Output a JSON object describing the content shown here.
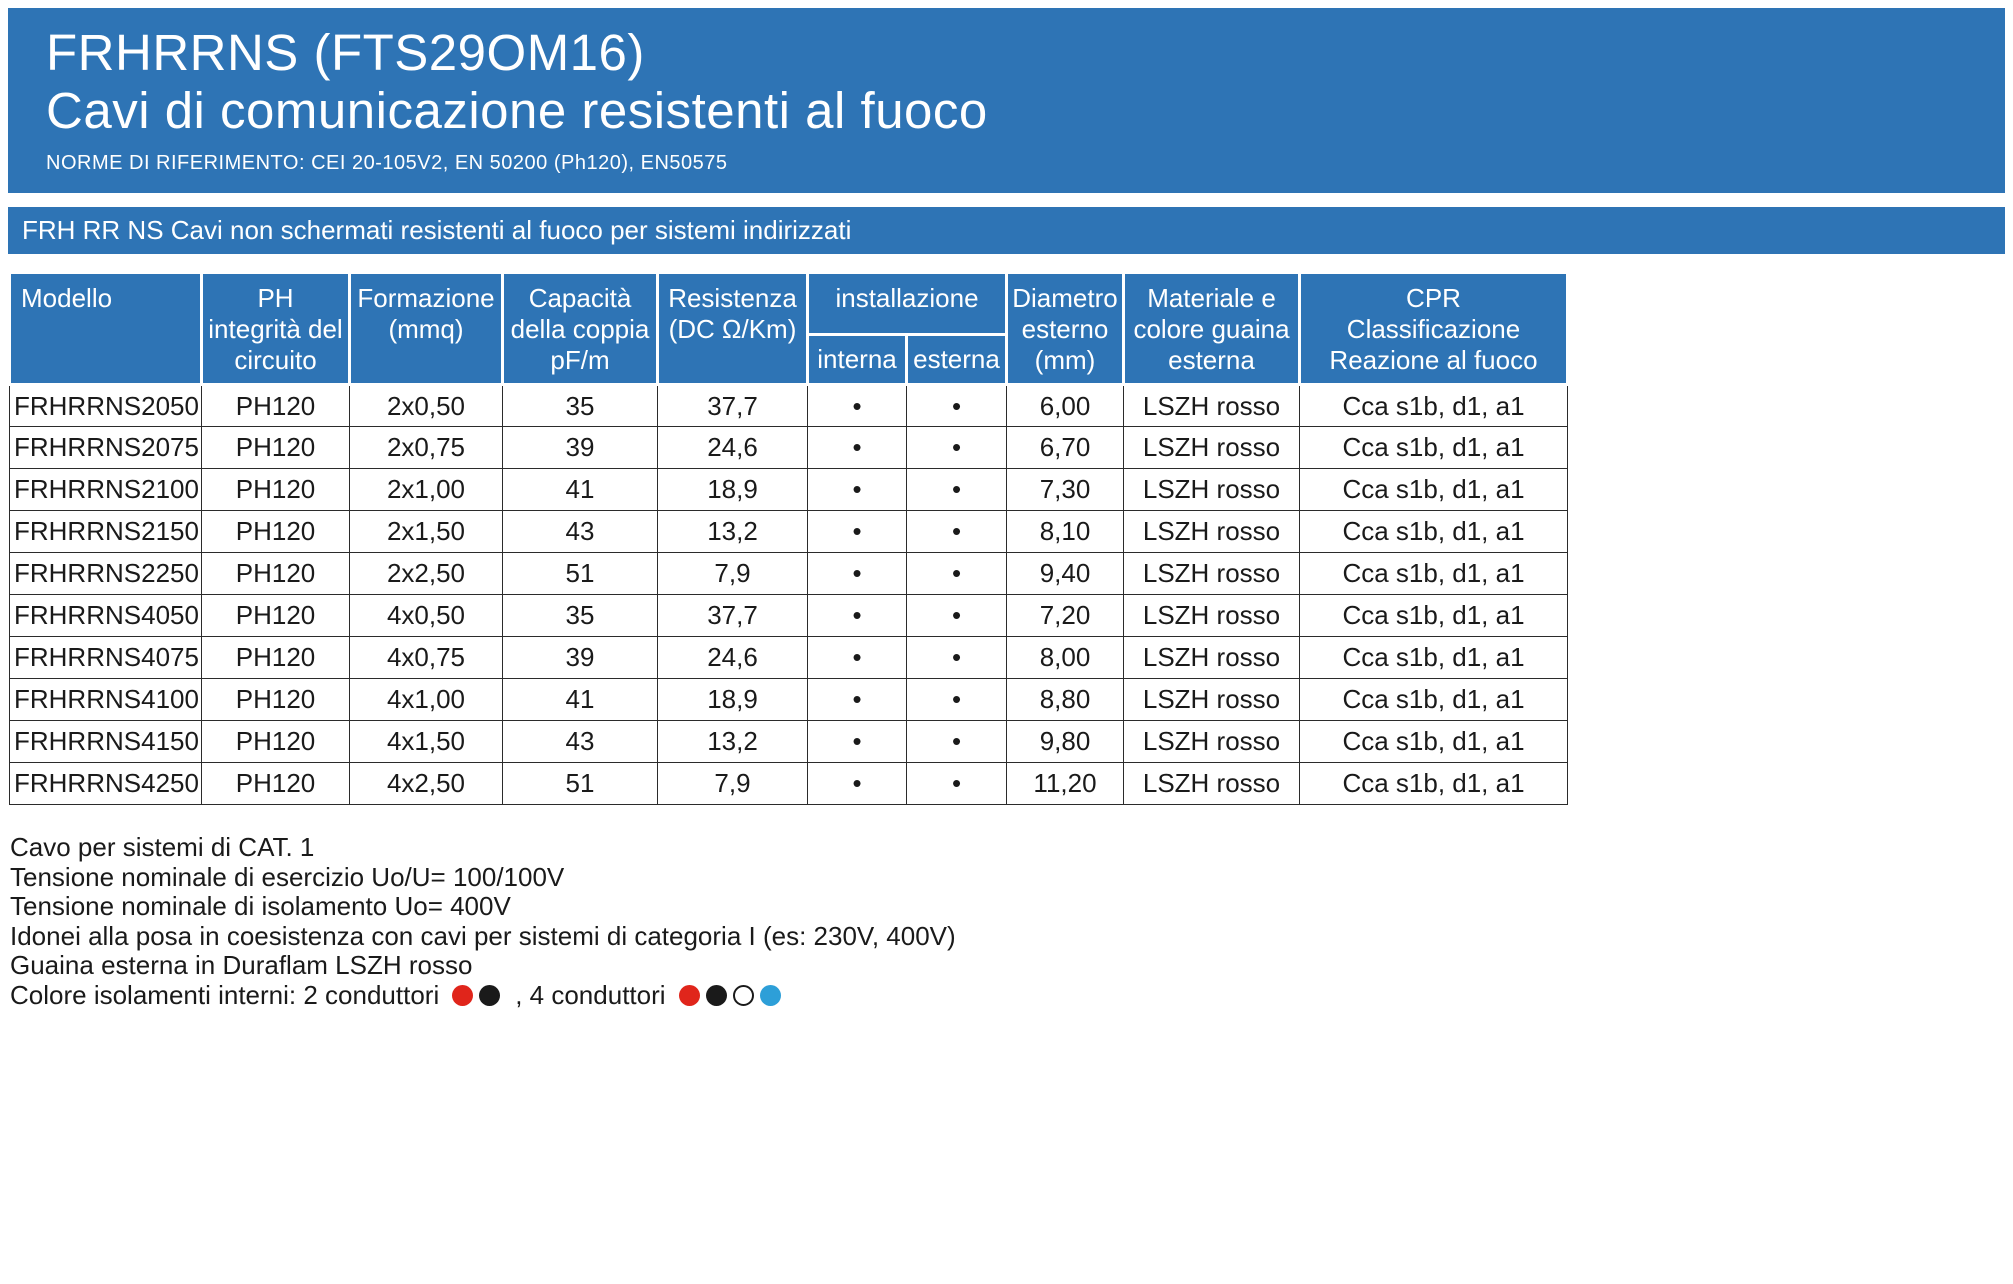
{
  "colors": {
    "primary_blue": "#2e74b5",
    "header_text": "#ffffff",
    "body_text": "#1a1a1a",
    "table_border": "#2b2b2b"
  },
  "header": {
    "title_line1": "FRHRRNS (FTS29OM16)",
    "title_line2": "Cavi di comunicazione resistenti al fuoco",
    "norms": "NORME DI RIFERIMENTO: CEI 20-105V2, EN 50200 (Ph120), EN50575"
  },
  "series_bar": {
    "text": "FRH RR NS Cavi non schermati resistenti al fuoco per sistemi indirizzati"
  },
  "table": {
    "headers": {
      "modello": "Modello",
      "ph": "PH\nintegrità del\ncircuito",
      "formazione": "Formazione\n(mmq)",
      "capacita": "Capacità\ndella coppia\npF/m",
      "resistenza": "Resistenza\n(DC Ω/Km)",
      "installazione": "installazione",
      "interna": "interna",
      "esterna": "esterna",
      "diametro": "Diametro\nesterno\n(mm)",
      "materiale": "Materiale e\ncolore guaina\nesterna",
      "cpr": "CPR\nClassificazione\nReazione al fuoco"
    },
    "rows": [
      {
        "modello": "FRHRRNS2050",
        "ph": "PH120",
        "formazione": "2x0,50",
        "capacita": "35",
        "resistenza": "37,7",
        "interna": "•",
        "esterna": "•",
        "diametro": "6,00",
        "materiale": "LSZH rosso",
        "cpr": "Cca s1b, d1, a1"
      },
      {
        "modello": "FRHRRNS2075",
        "ph": "PH120",
        "formazione": "2x0,75",
        "capacita": "39",
        "resistenza": "24,6",
        "interna": "•",
        "esterna": "•",
        "diametro": "6,70",
        "materiale": "LSZH rosso",
        "cpr": "Cca s1b, d1, a1"
      },
      {
        "modello": "FRHRRNS2100",
        "ph": "PH120",
        "formazione": "2x1,00",
        "capacita": "41",
        "resistenza": "18,9",
        "interna": "•",
        "esterna": "•",
        "diametro": "7,30",
        "materiale": "LSZH rosso",
        "cpr": "Cca s1b, d1, a1"
      },
      {
        "modello": "FRHRRNS2150",
        "ph": "PH120",
        "formazione": "2x1,50",
        "capacita": "43",
        "resistenza": "13,2",
        "interna": "•",
        "esterna": "•",
        "diametro": "8,10",
        "materiale": "LSZH rosso",
        "cpr": "Cca s1b, d1, a1"
      },
      {
        "modello": "FRHRRNS2250",
        "ph": "PH120",
        "formazione": "2x2,50",
        "capacita": "51",
        "resistenza": "7,9",
        "interna": "•",
        "esterna": "•",
        "diametro": "9,40",
        "materiale": "LSZH rosso",
        "cpr": "Cca s1b, d1, a1"
      },
      {
        "modello": "FRHRRNS4050",
        "ph": "PH120",
        "formazione": "4x0,50",
        "capacita": "35",
        "resistenza": "37,7",
        "interna": "•",
        "esterna": "•",
        "diametro": "7,20",
        "materiale": "LSZH rosso",
        "cpr": "Cca s1b, d1, a1"
      },
      {
        "modello": "FRHRRNS4075",
        "ph": "PH120",
        "formazione": "4x0,75",
        "capacita": "39",
        "resistenza": "24,6",
        "interna": "•",
        "esterna": "•",
        "diametro": "8,00",
        "materiale": "LSZH rosso",
        "cpr": "Cca s1b, d1, a1"
      },
      {
        "modello": "FRHRRNS4100",
        "ph": "PH120",
        "formazione": "4x1,00",
        "capacita": "41",
        "resistenza": "18,9",
        "interna": "•",
        "esterna": "•",
        "diametro": "8,80",
        "materiale": "LSZH rosso",
        "cpr": "Cca s1b, d1, a1"
      },
      {
        "modello": "FRHRRNS4150",
        "ph": "PH120",
        "formazione": "4x1,50",
        "capacita": "43",
        "resistenza": "13,2",
        "interna": "•",
        "esterna": "•",
        "diametro": "9,80",
        "materiale": "LSZH rosso",
        "cpr": "Cca s1b, d1, a1"
      },
      {
        "modello": "FRHRRNS4250",
        "ph": "PH120",
        "formazione": "4x2,50",
        "capacita": "51",
        "resistenza": "7,9",
        "interna": "•",
        "esterna": "•",
        "diametro": "11,20",
        "materiale": "LSZH rosso",
        "cpr": "Cca s1b, d1, a1"
      }
    ]
  },
  "notes": {
    "lines": [
      "Cavo per sistemi di CAT. 1",
      "Tensione nominale di esercizio Uo/U= 100/100V",
      "Tensione nominale di isolamento Uo= 400V",
      "Idonei alla posa in coesistenza con cavi per sistemi di categoria I (es: 230V, 400V)",
      "Guaina esterna in Duraflam LSZH rosso"
    ],
    "colors_line": {
      "prefix": "Colore isolamenti interni: 2 conduttori",
      "separator": ", 4 conduttori",
      "dots_2": [
        "#e0251b",
        "#1a1a1a"
      ],
      "dots_4": [
        "#e0251b",
        "#1a1a1a",
        "#ffffff",
        "#2d9fd8"
      ]
    }
  }
}
